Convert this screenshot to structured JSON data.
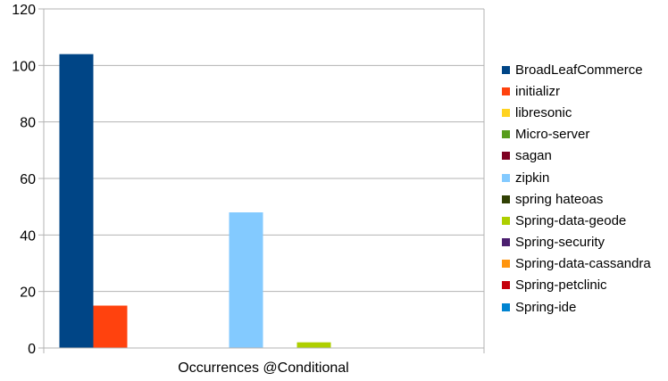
{
  "chart_data": {
    "type": "bar",
    "categories": [
      "Occurrences @Conditional"
    ],
    "ylim": [
      0,
      120
    ],
    "yticks": [
      0,
      20,
      40,
      60,
      80,
      100,
      120
    ],
    "grid": true,
    "legend_position": "right",
    "series": [
      {
        "name": "BroadLeafCommerce",
        "color": "#004586",
        "values": [
          104
        ]
      },
      {
        "name": "initializr",
        "color": "#ff420e",
        "values": [
          15
        ]
      },
      {
        "name": "libresonic",
        "color": "#ffd320",
        "values": [
          0
        ]
      },
      {
        "name": "Micro-server",
        "color": "#579d1c",
        "values": [
          0
        ]
      },
      {
        "name": "sagan",
        "color": "#7e0021",
        "values": [
          0
        ]
      },
      {
        "name": "zipkin",
        "color": "#83caff",
        "values": [
          48
        ]
      },
      {
        "name": "spring hateoas",
        "color": "#314004",
        "values": [
          0
        ]
      },
      {
        "name": "Spring-data-geode",
        "color": "#aecf00",
        "values": [
          2
        ]
      },
      {
        "name": "Spring-security",
        "color": "#4b1f6f",
        "values": [
          0
        ]
      },
      {
        "name": "Spring-data-cassandra",
        "color": "#ff950e",
        "values": [
          0
        ]
      },
      {
        "name": "Spring-petclinic",
        "color": "#c5000b",
        "values": [
          0
        ]
      },
      {
        "name": "Spring-ide",
        "color": "#0084d1",
        "values": [
          0
        ]
      }
    ]
  }
}
